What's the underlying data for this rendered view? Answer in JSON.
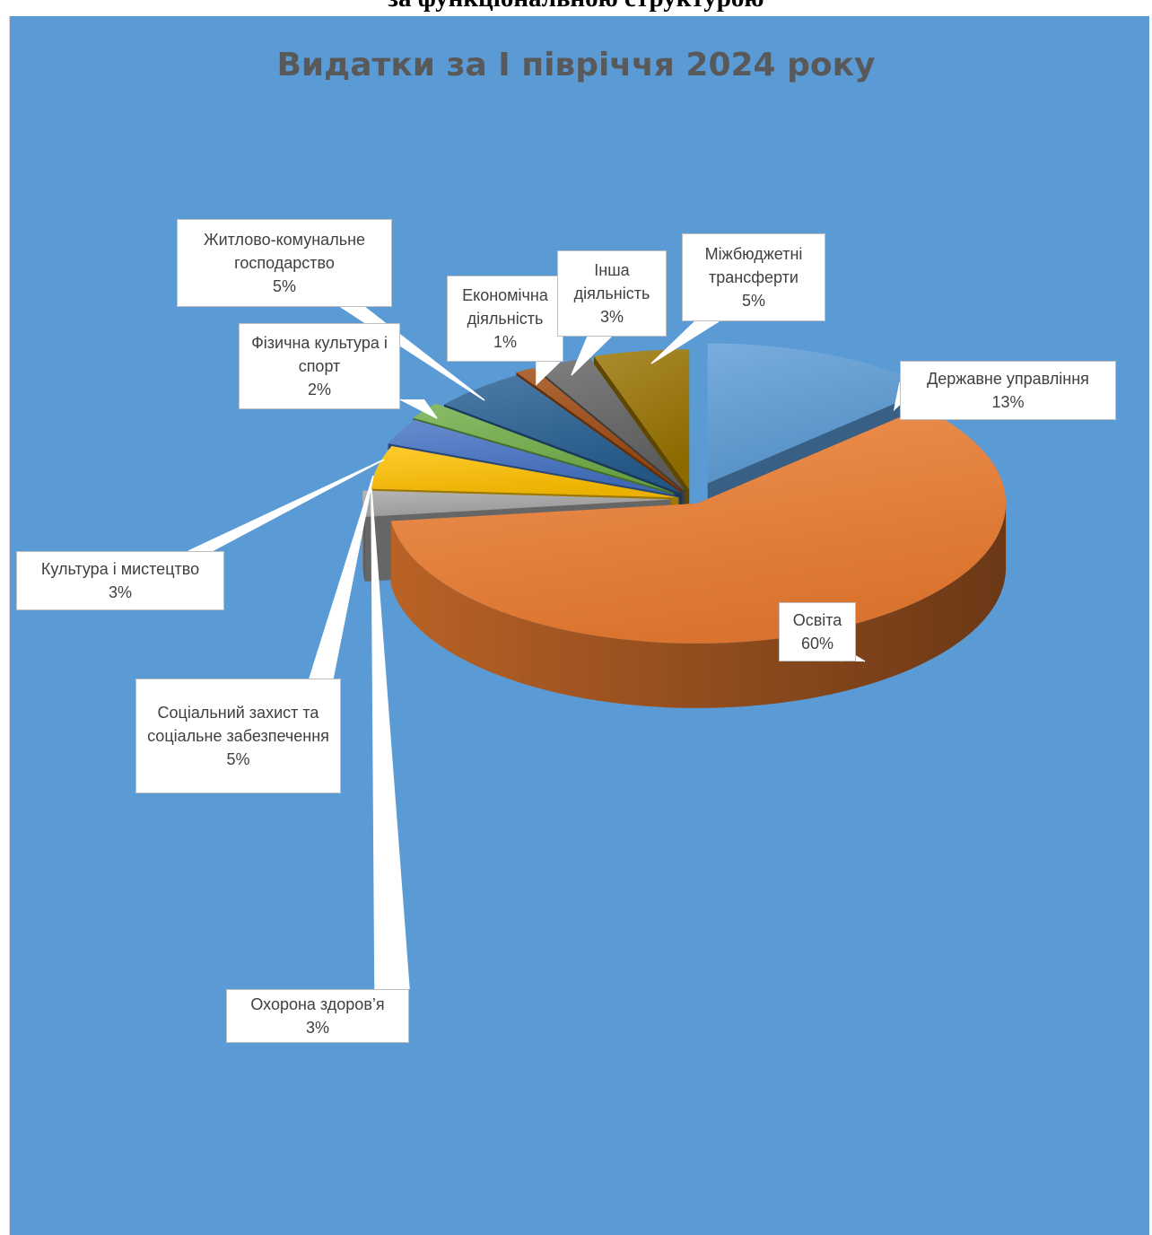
{
  "document": {
    "heading": "за функціональною структурою"
  },
  "chart_data": {
    "type": "pie",
    "title": "Видатки за І півріччя 2024 року",
    "categories": [
      "Державне управління",
      "Освіта",
      "Охорона здоров’я",
      "Соціальний захист та соціальне забезпечення",
      "Культура і мистецтво",
      "Фізична культура і спорт",
      "Житлово-комунальне господарство",
      "Економічна діяльність",
      "Інша діяльність",
      "Міжбюджетні трансферти"
    ],
    "values": [
      13,
      60,
      3,
      5,
      3,
      2,
      5,
      1,
      3,
      5
    ],
    "data_labels": [
      "13%",
      "60%",
      "3%",
      "5%",
      "3%",
      "2%",
      "5%",
      "1%",
      "3%",
      "5%"
    ],
    "colors": [
      "#5b9bd5",
      "#ed7d31",
      "#a5a5a5",
      "#ffc000",
      "#4472c4",
      "#70ad47",
      "#255e91",
      "#9e480e",
      "#636363",
      "#997300"
    ],
    "background": "#5b9bd5",
    "exploded": true,
    "three_d": true,
    "legend": "none"
  }
}
